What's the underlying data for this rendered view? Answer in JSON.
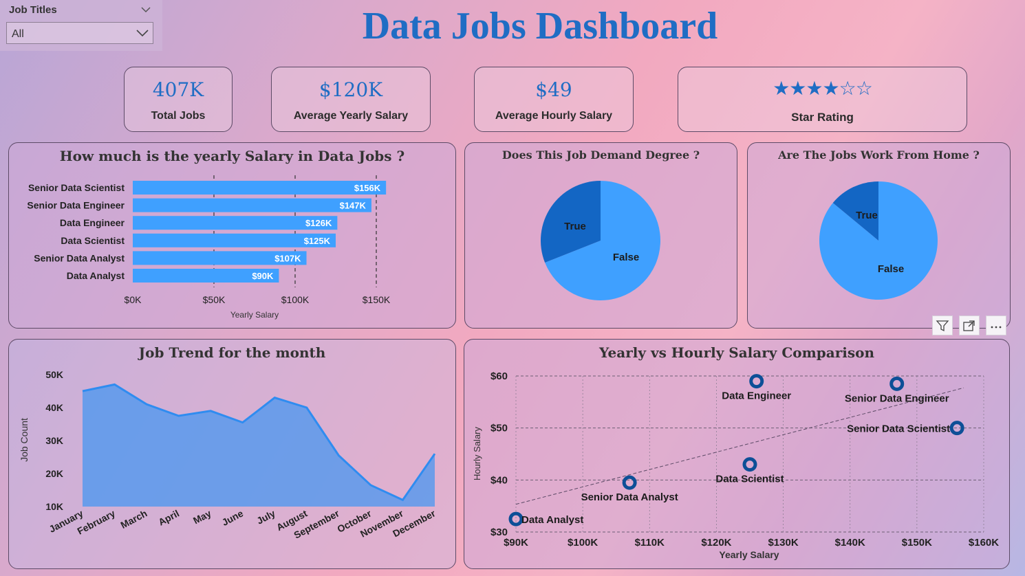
{
  "slicer": {
    "label": "Job Titles",
    "value": "All"
  },
  "title": "Data Jobs Dashboard",
  "kpis": {
    "total_jobs": {
      "value": "407K",
      "label": "Total Jobs"
    },
    "avg_yearly": {
      "value": "$120K",
      "label": "Average Yearly Salary"
    },
    "avg_hourly": {
      "value": "$49",
      "label": "Average Hourly Salary"
    },
    "star_rating": {
      "label": "Star Rating",
      "filled": 4,
      "total": 6
    }
  },
  "visual_toolbar": {
    "icons": [
      "filter-icon",
      "focus-mode-icon",
      "more-options-icon"
    ]
  },
  "chart_data": [
    {
      "type": "bar",
      "title": "How much is the yearly Salary in Data Jobs ?",
      "xlabel": "Yearly Salary",
      "ylabel": "",
      "categories": [
        "Senior Data Scientist",
        "Senior Data Engineer",
        "Data Engineer",
        "Data Scientist",
        "Senior Data Analyst",
        "Data Analyst"
      ],
      "values": [
        156,
        147,
        126,
        125,
        107,
        90
      ],
      "data_labels": [
        "$156K",
        "$147K",
        "$126K",
        "$125K",
        "$107K",
        "$90K"
      ],
      "ticks": [
        "$0K",
        "$50K",
        "$100K",
        "$150K"
      ],
      "xlim": [
        0,
        150
      ],
      "grid": "dashed vertical",
      "color": "#3fa0ff"
    },
    {
      "type": "pie",
      "title": "Does This Job Demand Degree ?",
      "slices": [
        {
          "label": "True",
          "value": 31
        },
        {
          "label": "False",
          "value": 69
        }
      ],
      "colors": [
        "#1366c4",
        "#3fa0ff"
      ]
    },
    {
      "type": "pie",
      "title": "Are The Jobs Work From Home ?",
      "slices": [
        {
          "label": "True",
          "value": 14
        },
        {
          "label": "False",
          "value": 86
        }
      ],
      "colors": [
        "#1366c4",
        "#3fa0ff"
      ]
    },
    {
      "type": "area",
      "title": "Job Trend for the month",
      "xlabel": "",
      "ylabel": "Job Count",
      "categories": [
        "January",
        "February",
        "March",
        "April",
        "May",
        "June",
        "July",
        "August",
        "September",
        "October",
        "November",
        "December"
      ],
      "values": [
        45000,
        47000,
        41000,
        37500,
        39000,
        35500,
        43000,
        40000,
        25500,
        16500,
        12000,
        26000
      ],
      "ticks": [
        "10K",
        "20K",
        "30K",
        "40K",
        "50K"
      ],
      "ylim": [
        10000,
        50000
      ],
      "color": "#3f96f2"
    },
    {
      "type": "scatter",
      "title": "Yearly vs Hourly Salary Comparison",
      "xlabel": "Yearly Salary",
      "ylabel": "Hourly Salary",
      "points": [
        {
          "label": "Data Analyst",
          "x": 90000,
          "y": 32.5
        },
        {
          "label": "Senior Data Analyst",
          "x": 107000,
          "y": 39.5
        },
        {
          "label": "Data Scientist",
          "x": 125000,
          "y": 43
        },
        {
          "label": "Data Engineer",
          "x": 126000,
          "y": 59
        },
        {
          "label": "Senior Data Engineer",
          "x": 147000,
          "y": 58.5
        },
        {
          "label": "Senior Data Scientist",
          "x": 156000,
          "y": 50
        }
      ],
      "x_ticks": [
        "$90K",
        "$100K",
        "$110K",
        "$120K",
        "$130K",
        "$140K",
        "$150K",
        "$160K"
      ],
      "y_ticks": [
        "$30",
        "$40",
        "$50",
        "$60"
      ],
      "xlim": [
        90000,
        160000
      ],
      "ylim": [
        30,
        60
      ],
      "trendline": true,
      "grid": "dashed"
    }
  ]
}
